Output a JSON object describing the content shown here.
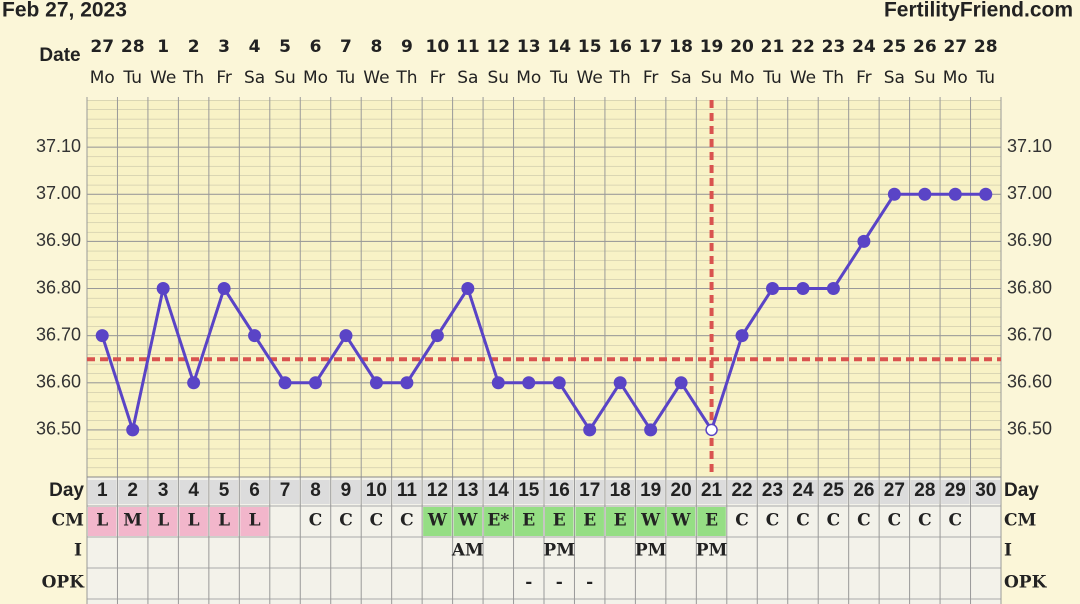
{
  "header": {
    "date": "Feb 27, 2023",
    "site": "FertilityFriend.com"
  },
  "chart_data": {
    "type": "line",
    "x_label": "Date",
    "categories": [
      "27",
      "28",
      "1",
      "2",
      "3",
      "4",
      "5",
      "6",
      "7",
      "8",
      "9",
      "10",
      "11",
      "12",
      "13",
      "14",
      "15",
      "16",
      "17",
      "18",
      "19",
      "20",
      "21",
      "22",
      "23",
      "24",
      "25",
      "26",
      "27",
      "28"
    ],
    "weekdays": [
      "Mo",
      "Tu",
      "We",
      "Th",
      "Fr",
      "Sa",
      "Su",
      "Mo",
      "Tu",
      "We",
      "Th",
      "Fr",
      "Sa",
      "Su",
      "Mo",
      "Tu",
      "We",
      "Th",
      "Fr",
      "Sa",
      "Su",
      "Mo",
      "Tu",
      "We",
      "Th",
      "Fr",
      "Sa",
      "Su",
      "Mo",
      "Tu"
    ],
    "values": [
      36.7,
      36.5,
      36.8,
      36.6,
      36.8,
      36.7,
      36.6,
      36.6,
      36.7,
      36.6,
      36.6,
      36.7,
      36.8,
      36.6,
      36.6,
      36.6,
      36.5,
      36.6,
      36.5,
      36.6,
      36.5,
      36.7,
      36.8,
      36.8,
      36.8,
      36.9,
      37.0,
      37.0,
      37.0,
      37.0
    ],
    "color": "#5a44c6",
    "open_markers": [
      21
    ],
    "ylim": [
      36.4,
      37.2
    ],
    "yticks": [
      {
        "value": 36.5,
        "label": "36.50"
      },
      {
        "value": 36.6,
        "label": "36.60"
      },
      {
        "value": 36.7,
        "label": "36.70"
      },
      {
        "value": 36.8,
        "label": "36.80"
      },
      {
        "value": 36.9,
        "label": "36.90"
      },
      {
        "value": 37.0,
        "label": "37.00"
      },
      {
        "value": 37.1,
        "label": "37.10"
      }
    ],
    "grid": true,
    "coverline": 36.65,
    "ovulation_day": 21,
    "reference_color": "#d9534f",
    "table": {
      "labels": [
        "Day",
        "CM",
        "I",
        "OPK"
      ],
      "days": [
        1,
        2,
        3,
        4,
        5,
        6,
        7,
        8,
        9,
        10,
        11,
        12,
        13,
        14,
        15,
        16,
        17,
        18,
        19,
        20,
        21,
        22,
        23,
        24,
        25,
        26,
        27,
        28,
        29,
        30
      ],
      "cm": [
        "L",
        "M",
        "L",
        "L",
        "L",
        "L",
        null,
        "C",
        "C",
        "C",
        "C",
        "W",
        "W",
        "E*",
        "E",
        "E",
        "E",
        "E",
        "W",
        "W",
        "E",
        "C",
        "C",
        "C",
        "C",
        "C",
        "C",
        "C",
        "C",
        null
      ],
      "i": [
        null,
        null,
        null,
        null,
        null,
        null,
        null,
        null,
        null,
        null,
        null,
        null,
        "AM",
        null,
        null,
        "PM",
        null,
        null,
        "PM",
        null,
        "PM",
        null,
        null,
        null,
        null,
        null,
        null,
        null,
        null,
        null
      ],
      "opk": [
        null,
        null,
        null,
        null,
        null,
        null,
        null,
        null,
        null,
        null,
        null,
        null,
        null,
        null,
        "-",
        "-",
        "-",
        null,
        null,
        null,
        null,
        null,
        null,
        null,
        null,
        null,
        null,
        null,
        null,
        null
      ],
      "cm_colors": {
        "L": "#f2b6cb",
        "M": "#f2b6cb",
        "W": "#95de84",
        "E": "#95de84",
        "E*": "#95de84"
      }
    }
  }
}
